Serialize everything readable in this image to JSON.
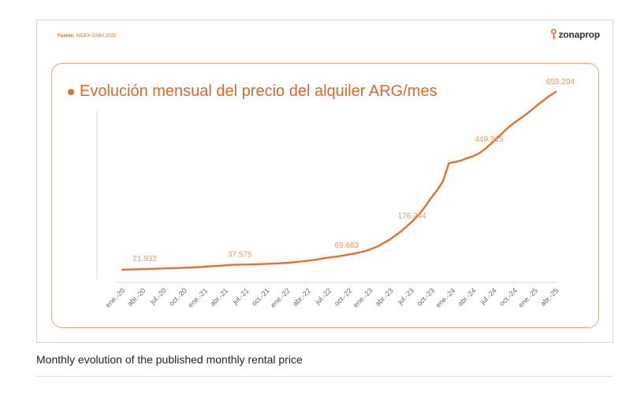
{
  "source": {
    "label": "Fuente:",
    "value": "INDEX CABA 2025"
  },
  "brand": {
    "name": "zonaprop"
  },
  "colors": {
    "accent": "#e8702a",
    "label": "#e89a5c",
    "tick": "#666666",
    "axis": "#d9d9d9"
  },
  "caption": "Monthly evolution of the published monthly rental price",
  "chart_data": {
    "type": "line",
    "title": "Evolución mensual del precio del alquiler ARG/mes",
    "xlabel": "",
    "ylabel": "",
    "ylim": [
      0,
      700000
    ],
    "grid": false,
    "tick_labels": [
      "ene.-20",
      "abr.-20",
      "jul.-20",
      "oct.-20",
      "ene.-21",
      "abr.-21",
      "jul.-21",
      "oct.-21",
      "ene.-22",
      "abr.-22",
      "jul.-22",
      "oct.-22",
      "ene.-23",
      "abr.-23",
      "jul.-23",
      "oct.-23",
      "ene.-24",
      "abr.-24",
      "jul.-24",
      "oct.-24",
      "ene.-25",
      "abr.-25"
    ],
    "series": [
      {
        "name": "Precio del alquiler ARG/mes",
        "values": [
          20000,
          20500,
          21000,
          21932,
          22500,
          23000,
          23500,
          24500,
          25500,
          26000,
          26500,
          27500,
          28500,
          29500,
          31000,
          32500,
          34000,
          35000,
          36500,
          37575,
          38000,
          38500,
          39000,
          40000,
          40500,
          41500,
          42000,
          43500,
          45000,
          47000,
          49000,
          51500,
          54000,
          57000,
          61000,
          64000,
          66500,
          69683,
          74000,
          77000,
          82000,
          87000,
          95000,
          103000,
          115000,
          127000,
          142000,
          158000,
          176244,
          196000,
          218000,
          245000,
          276000,
          303000,
          335000,
          400000,
          405000,
          410000,
          418000,
          425000,
          435000,
          449915,
          468000,
          488000,
          508000,
          528000,
          545000,
          560000,
          575000,
          592000,
          610000,
          626000,
          642000,
          655294
        ]
      }
    ],
    "annotations": [
      {
        "index": 3,
        "label": "21.932"
      },
      {
        "index": 19,
        "label": "37.575"
      },
      {
        "index": 37,
        "label": "69.683"
      },
      {
        "index": 48,
        "label": "176.244"
      },
      {
        "index": 61,
        "label": "449.915"
      },
      {
        "index": 73,
        "label": "655.294"
      }
    ]
  }
}
